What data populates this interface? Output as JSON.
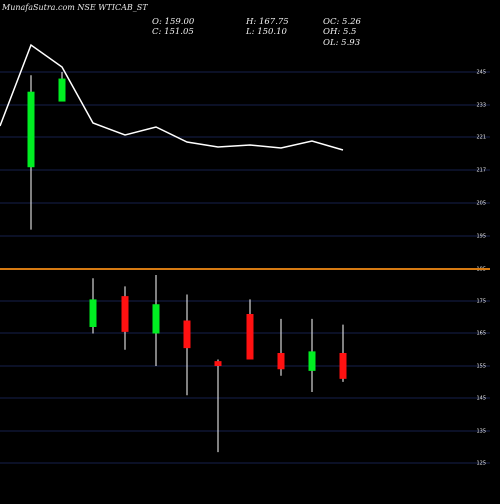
{
  "chart_data": {
    "type": "candlestick",
    "title": "MunafaSutra.com NSE WTICAB_ST",
    "stats": {
      "O": "O: 159.00",
      "C": "C: 151.05",
      "H": "H: 167.75",
      "L": "L: 150.10",
      "OC": "OC: 5.26",
      "OH": "OH: 5.5",
      "OL": "OL: 5.93"
    },
    "upper_panel": {
      "y_ticks": [
        "245",
        "233",
        "221",
        "217",
        "205",
        "195",
        "185"
      ],
      "line": [
        20,
        42,
        98,
        110,
        102,
        117,
        122,
        120,
        123,
        116,
        125
      ],
      "reference_line": 196
    },
    "lower_panel": {
      "y_ticks": [
        "175",
        "165",
        "155",
        "145",
        "135",
        "125"
      ],
      "ylim": [
        121,
        181
      ]
    },
    "candles": [
      {
        "open": 216,
        "close": 239,
        "high": 244,
        "low": 197,
        "color": "green",
        "panel": "upper"
      },
      {
        "open": 236,
        "close": 243,
        "high": 245,
        "low": 236,
        "color": "green",
        "panel": "upper"
      },
      {
        "open": 167,
        "close": 175.5,
        "high": 182,
        "low": 165,
        "color": "green",
        "panel": "lower"
      },
      {
        "open": 176.5,
        "close": 165.5,
        "high": 179.5,
        "low": 160,
        "color": "red",
        "panel": "lower"
      },
      {
        "open": 165,
        "close": 174,
        "high": 183,
        "low": 155,
        "color": "green",
        "panel": "lower"
      },
      {
        "open": 169,
        "close": 160.5,
        "high": 177,
        "low": 146,
        "color": "red",
        "panel": "lower"
      },
      {
        "open": 156.5,
        "close": 155,
        "high": 157,
        "low": 128.5,
        "color": "red",
        "panel": "lower"
      },
      {
        "open": 171,
        "close": 157,
        "high": 175.5,
        "low": 157,
        "color": "red",
        "panel": "lower"
      },
      {
        "open": 159,
        "close": 154,
        "high": 169.5,
        "low": 152,
        "color": "red",
        "panel": "lower"
      },
      {
        "open": 153.5,
        "close": 159.5,
        "high": 169.5,
        "low": 147,
        "color": "green",
        "panel": "lower"
      },
      {
        "open": 159,
        "close": 151.05,
        "high": 167.75,
        "low": 150.1,
        "color": "red",
        "panel": "lower"
      }
    ]
  }
}
